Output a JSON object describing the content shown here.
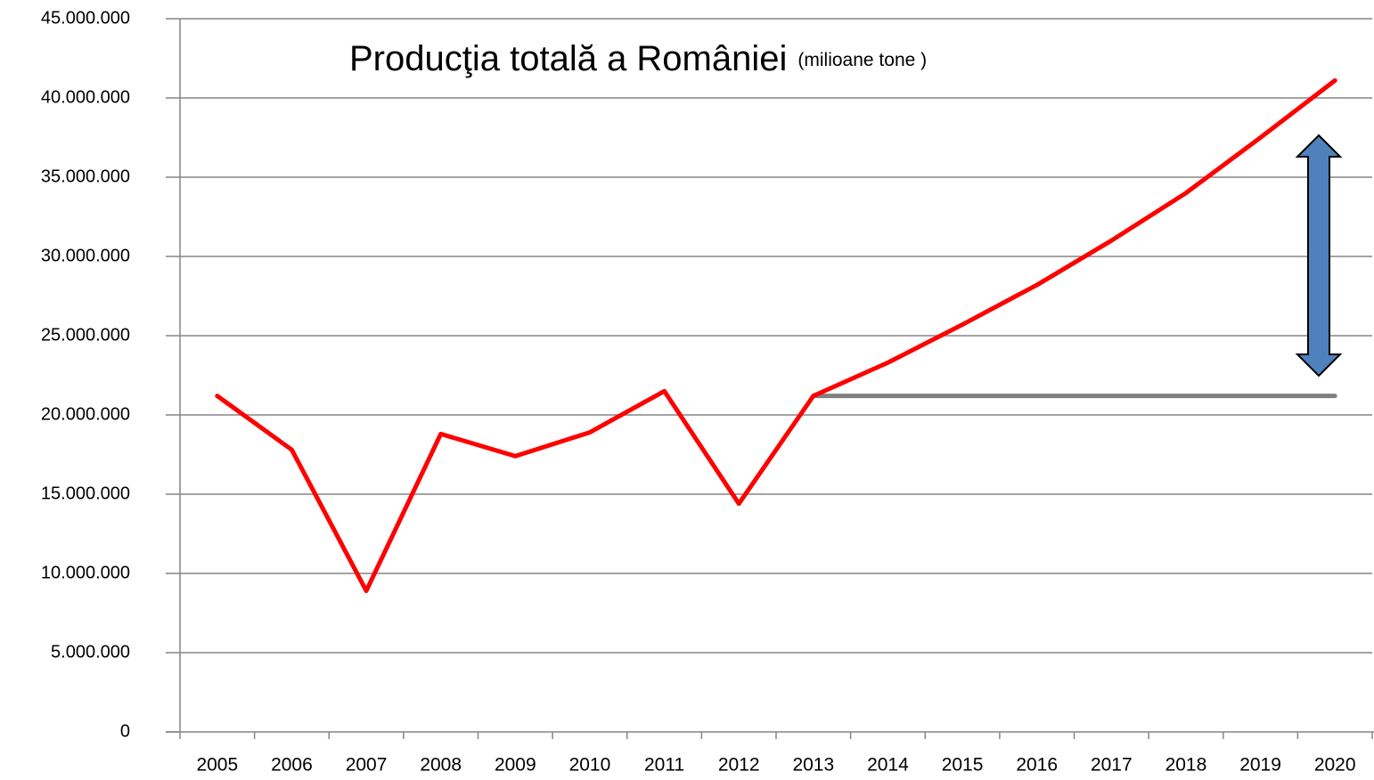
{
  "chart_data": {
    "type": "line",
    "title": "Producţia totală a României",
    "subtitle": "(milioane tone )",
    "categories": [
      "2005",
      "2006",
      "2007",
      "2008",
      "2009",
      "2010",
      "2011",
      "2012",
      "2013",
      "2014",
      "2015",
      "2016",
      "2017",
      "2018",
      "2019",
      "2020"
    ],
    "series": [
      {
        "color": "#ff0000",
        "values": [
          21200000,
          17800000,
          8900000,
          18800000,
          17400000,
          18900000,
          21500000,
          14400000,
          21200000,
          23300000,
          25700000,
          28200000,
          31000000,
          34000000,
          37500000,
          41100000
        ]
      },
      {
        "color": "#808080",
        "values": [
          null,
          null,
          null,
          null,
          null,
          null,
          null,
          null,
          21200000,
          21200000,
          21200000,
          21200000,
          21200000,
          21200000,
          21200000,
          21200000
        ]
      }
    ],
    "ylim": [
      0,
      45000000
    ],
    "yticks": [
      0,
      {
        "value": 5000000,
        "label": "5.000.000"
      },
      {
        "value": 10000000,
        "label": "10.000.000"
      },
      {
        "value": 15000000,
        "label": "15.000.000"
      },
      {
        "value": 20000000,
        "label": "20.000.000"
      },
      {
        "value": 25000000,
        "label": "25.000.000"
      },
      {
        "value": 30000000,
        "label": "30.000.000"
      },
      {
        "value": 35000000,
        "label": "35.000.000"
      },
      {
        "value": 40000000,
        "label": "40.000.000"
      },
      {
        "value": 45000000,
        "label": "45.000.000"
      }
    ],
    "grid": true
  }
}
